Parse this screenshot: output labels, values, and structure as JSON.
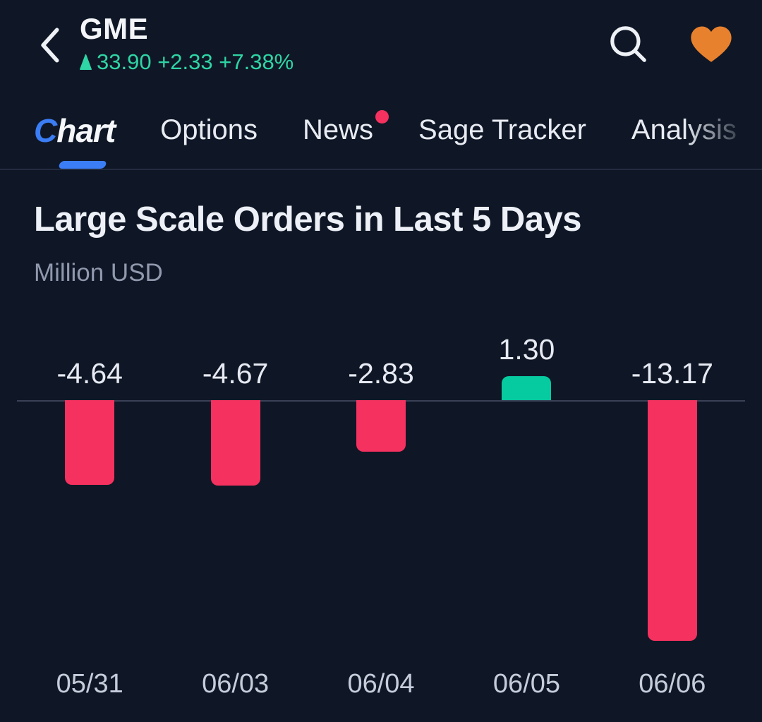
{
  "header": {
    "symbol": "GME",
    "price": "33.90",
    "change": "+2.33",
    "change_percent": "+7.38%",
    "price_line": "33.90 +2.33 +7.38%",
    "direction": "up"
  },
  "tabs": [
    {
      "label": "Chart",
      "label_parts": {
        "accent": "C",
        "rest": "hart"
      },
      "active": true
    },
    {
      "label": "Options",
      "active": false
    },
    {
      "label": "News",
      "active": false,
      "badge_dot": true
    },
    {
      "label": "Sage Tracker",
      "active": false
    },
    {
      "label": "Analysis",
      "active": false,
      "truncated": true
    }
  ],
  "chart": {
    "title": "Large Scale Orders in Last 5 Days",
    "unit": "Million USD"
  },
  "chart_data": {
    "type": "bar",
    "title": "Large Scale Orders in Last 5 Days",
    "xlabel": "",
    "ylabel": "Million USD",
    "categories": [
      "05/31",
      "06/03",
      "06/04",
      "06/05",
      "06/06"
    ],
    "values": [
      -4.64,
      -4.67,
      -2.83,
      1.3,
      -13.17
    ],
    "value_labels": [
      "-4.64",
      "-4.67",
      "-2.83",
      "1.30",
      "-13.17"
    ],
    "ylim": [
      -14,
      2
    ],
    "grid": false,
    "legend": "none",
    "colors": {
      "positive": "#06cba0",
      "negative": "#f5315f"
    }
  },
  "colors": {
    "background": "#0f1726",
    "accent_blue": "#3b7df4",
    "price_up_green": "#2fd5a4",
    "bar_negative_pink": "#f5315f",
    "bar_positive_green": "#06cba0",
    "news_badge": "#f5315f",
    "heart_orange": "#e8812e",
    "zero_line": "#3a4156"
  },
  "icons": {
    "back": "chevron-left",
    "search": "magnifier",
    "favorite": "heart-filled",
    "price_direction": "triangle-up"
  }
}
